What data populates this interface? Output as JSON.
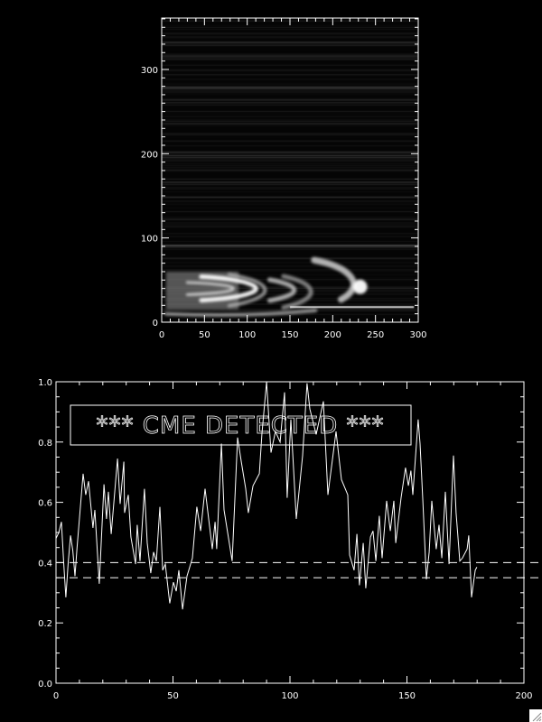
{
  "chart_data": [
    {
      "type": "heatmap",
      "xlim": [
        0,
        300
      ],
      "ylim": [
        0,
        361
      ],
      "xticks": [
        "0",
        "50",
        "100",
        "150",
        "200",
        "250",
        "300"
      ],
      "yticks": [
        "0",
        "100",
        "200",
        "300"
      ],
      "colormap": "grayscale",
      "grid": false
    },
    {
      "type": "line",
      "xlim": [
        0,
        200
      ],
      "ylim": [
        0,
        1.0
      ],
      "xticks": [
        "0",
        "50",
        "100",
        "150",
        "200"
      ],
      "yticks": [
        "0.0",
        "0.2",
        "0.4",
        "0.6",
        "0.8",
        "1.0"
      ],
      "grid": false,
      "annotation": "*** CME DETECTED ***",
      "thresholds": [
        0.4,
        0.35
      ],
      "line_color": "#ffffff",
      "background": "#000000",
      "series": [
        {
          "x": [
            0,
            1.2,
            2.3,
            3.3,
            4.2,
            5.2,
            6.2,
            7.2,
            8.1,
            9.0,
            10.0,
            11.6,
            12.7,
            13.9,
            15.8,
            16.6,
            18.5,
            20.5,
            21.6,
            22.4,
            23.6,
            26.3,
            27.4,
            29.0,
            29.3,
            30.9,
            32.0,
            34.0,
            34.7,
            35.9,
            37.8,
            39.0,
            40.5,
            41.7,
            42.9,
            44.4,
            45.6,
            46.7,
            48.6,
            50.2,
            51.4,
            52.5,
            54.1,
            56.0,
            58.3,
            60.2,
            61.8,
            63.7,
            66.8,
            68.0,
            68.7,
            70.7,
            71.8,
            75.3,
            77.6,
            79.2,
            81.1,
            82.2,
            84.2,
            86.9,
            88.0,
            90.0,
            91.9,
            93.8,
            95.8,
            97.7,
            98.8,
            100.4,
            102.7,
            105.4,
            107.3,
            108.5,
            111.2,
            114.3,
            116.2,
            119.7,
            122.0,
            124.7,
            125.5,
            127.4,
            128.6,
            129.7,
            131.3,
            132.4,
            134.4,
            135.5,
            136.7,
            138.2,
            139.4,
            141.3,
            142.9,
            144.4,
            145.2,
            147.5,
            149.4,
            150.6,
            151.7,
            152.5,
            154.8,
            155.6,
            156.8,
            158.3,
            159.5,
            160.6,
            162.5,
            163.7,
            164.9,
            166.4,
            168.0,
            169.9,
            171.0,
            172.6,
            173.7,
            175.7,
            176.4,
            177.6,
            179.2,
            179.9
          ],
          "y": [
            0.48,
            0.5,
            0.535,
            0.4,
            0.285,
            0.4,
            0.49,
            0.44,
            0.355,
            0.45,
            0.545,
            0.695,
            0.625,
            0.67,
            0.515,
            0.575,
            0.33,
            0.66,
            0.545,
            0.635,
            0.495,
            0.745,
            0.595,
            0.735,
            0.565,
            0.625,
            0.485,
            0.395,
            0.525,
            0.405,
            0.645,
            0.465,
            0.365,
            0.435,
            0.405,
            0.585,
            0.375,
            0.395,
            0.265,
            0.335,
            0.305,
            0.375,
            0.245,
            0.355,
            0.415,
            0.585,
            0.505,
            0.645,
            0.445,
            0.535,
            0.445,
            0.795,
            0.575,
            0.405,
            0.815,
            0.735,
            0.645,
            0.565,
            0.655,
            0.695,
            0.825,
            1.0,
            0.765,
            0.835,
            0.8,
            0.965,
            0.615,
            0.875,
            0.545,
            0.755,
            0.995,
            0.91,
            0.825,
            0.935,
            0.625,
            0.835,
            0.675,
            0.625,
            0.425,
            0.375,
            0.495,
            0.325,
            0.465,
            0.315,
            0.485,
            0.505,
            0.405,
            0.555,
            0.415,
            0.605,
            0.505,
            0.605,
            0.465,
            0.615,
            0.715,
            0.655,
            0.705,
            0.625,
            0.875,
            0.795,
            0.605,
            0.345,
            0.435,
            0.605,
            0.445,
            0.525,
            0.415,
            0.635,
            0.395,
            0.755,
            0.565,
            0.405,
            0.415,
            0.445,
            0.49,
            0.285,
            0.375,
            0.385
          ]
        }
      ]
    }
  ],
  "window": {
    "resize_grip_icon": "resize-grip-icon"
  }
}
